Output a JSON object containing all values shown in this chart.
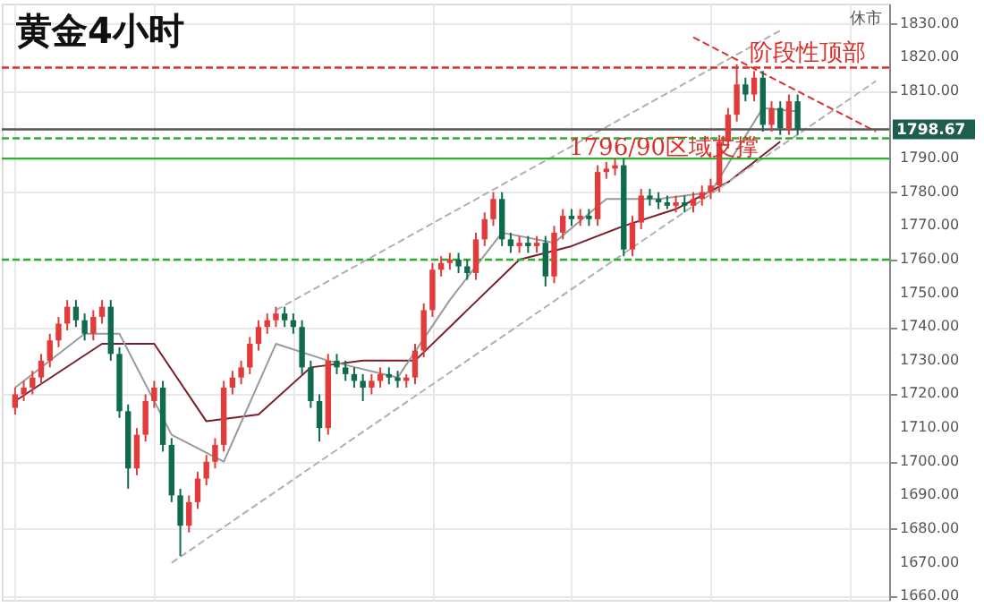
{
  "chart_data": {
    "type": "candlestick",
    "title": "黄金4小时",
    "categories": [
      null,
      null,
      null,
      null,
      null,
      null,
      null,
      null,
      null,
      null,
      null,
      null,
      null,
      null,
      null,
      null,
      null,
      null,
      null,
      null,
      null,
      null,
      null,
      null,
      null,
      null,
      null,
      null,
      null,
      null,
      null,
      null,
      null,
      null,
      null,
      null,
      null,
      null,
      null,
      null,
      null,
      null,
      null,
      null,
      null,
      null,
      null,
      null,
      null,
      null,
      null,
      null,
      null,
      null,
      null,
      null,
      null,
      null,
      null,
      null,
      null,
      null,
      null,
      null,
      null,
      null,
      null,
      null,
      null,
      null,
      null,
      null,
      null,
      null,
      null,
      null,
      null,
      null,
      null,
      null,
      null,
      null,
      null,
      null,
      null,
      null,
      null,
      null,
      null,
      null,
      null,
      null,
      null,
      null,
      null,
      null,
      null,
      null,
      null,
      null
    ],
    "ohlc": [
      [
        1716,
        1722,
        1714,
        1720
      ],
      [
        1720,
        1724,
        1718,
        1722
      ],
      [
        1722,
        1727,
        1720,
        1725
      ],
      [
        1725,
        1732,
        1723,
        1730
      ],
      [
        1730,
        1738,
        1728,
        1736
      ],
      [
        1736,
        1743,
        1734,
        1741
      ],
      [
        1741,
        1748,
        1739,
        1746
      ],
      [
        1746,
        1748,
        1740,
        1742
      ],
      [
        1742,
        1744,
        1736,
        1738
      ],
      [
        1738,
        1745,
        1736,
        1743
      ],
      [
        1743,
        1748,
        1741,
        1746
      ],
      [
        1746,
        1748,
        1730,
        1732
      ],
      [
        1732,
        1734,
        1713,
        1715
      ],
      [
        1715,
        1717,
        1692,
        1698
      ],
      [
        1698,
        1710,
        1696,
        1708
      ],
      [
        1708,
        1720,
        1706,
        1718
      ],
      [
        1718,
        1724,
        1716,
        1722
      ],
      [
        1722,
        1724,
        1703,
        1705
      ],
      [
        1705,
        1707,
        1688,
        1690
      ],
      [
        1690,
        1692,
        1672,
        1681
      ],
      [
        1681,
        1690,
        1679,
        1688
      ],
      [
        1688,
        1697,
        1686,
        1695
      ],
      [
        1695,
        1702,
        1693,
        1700
      ],
      [
        1700,
        1707,
        1698,
        1705
      ],
      [
        1705,
        1724,
        1703,
        1722
      ],
      [
        1722,
        1727,
        1720,
        1725
      ],
      [
        1725,
        1730,
        1723,
        1728
      ],
      [
        1728,
        1737,
        1726,
        1735
      ],
      [
        1735,
        1742,
        1733,
        1740
      ],
      [
        1740,
        1744,
        1738,
        1742
      ],
      [
        1742,
        1746,
        1740,
        1744
      ],
      [
        1744,
        1746,
        1740,
        1742
      ],
      [
        1742,
        1744,
        1738,
        1740
      ],
      [
        1740,
        1742,
        1726,
        1728
      ],
      [
        1728,
        1730,
        1716,
        1718
      ],
      [
        1718,
        1720,
        1706,
        1710
      ],
      [
        1710,
        1732,
        1708,
        1730
      ],
      [
        1730,
        1732,
        1726,
        1728
      ],
      [
        1728,
        1730,
        1724,
        1726
      ],
      [
        1726,
        1728,
        1722,
        1724
      ],
      [
        1724,
        1726,
        1718,
        1722
      ],
      [
        1722,
        1726,
        1720,
        1724
      ],
      [
        1724,
        1728,
        1722,
        1726
      ],
      [
        1726,
        1728,
        1723,
        1725
      ],
      [
        1725,
        1727,
        1722,
        1724
      ],
      [
        1724,
        1726,
        1722,
        1725
      ],
      [
        1725,
        1735,
        1723,
        1733
      ],
      [
        1733,
        1747,
        1731,
        1745
      ],
      [
        1745,
        1759,
        1743,
        1757
      ],
      [
        1757,
        1761,
        1755,
        1759
      ],
      [
        1759,
        1762,
        1757,
        1760
      ],
      [
        1760,
        1762,
        1756,
        1758
      ],
      [
        1758,
        1760,
        1754,
        1756
      ],
      [
        1756,
        1768,
        1754,
        1766
      ],
      [
        1766,
        1774,
        1764,
        1772
      ],
      [
        1772,
        1780,
        1770,
        1778
      ],
      [
        1778,
        1780,
        1764,
        1766
      ],
      [
        1766,
        1768,
        1762,
        1764
      ],
      [
        1764,
        1767,
        1762,
        1765
      ],
      [
        1765,
        1767,
        1762,
        1764
      ],
      [
        1764,
        1767,
        1762,
        1765
      ],
      [
        1765,
        1767,
        1752,
        1755
      ],
      [
        1755,
        1770,
        1753,
        1768
      ],
      [
        1768,
        1775,
        1766,
        1773
      ],
      [
        1773,
        1775,
        1770,
        1772
      ],
      [
        1772,
        1775,
        1770,
        1773
      ],
      [
        1773,
        1775,
        1770,
        1772
      ],
      [
        1772,
        1788,
        1770,
        1786
      ],
      [
        1786,
        1789,
        1784,
        1787
      ],
      [
        1787,
        1790,
        1785,
        1788
      ],
      [
        1788,
        1790,
        1761,
        1763
      ],
      [
        1763,
        1773,
        1761,
        1771
      ],
      [
        1771,
        1781,
        1769,
        1779
      ],
      [
        1779,
        1781,
        1776,
        1778
      ],
      [
        1778,
        1780,
        1775,
        1777
      ],
      [
        1777,
        1779,
        1775,
        1776
      ],
      [
        1776,
        1779,
        1774,
        1777
      ],
      [
        1777,
        1779,
        1774,
        1776
      ],
      [
        1776,
        1780,
        1774,
        1778
      ],
      [
        1778,
        1782,
        1776,
        1780
      ],
      [
        1780,
        1784,
        1778,
        1782
      ],
      [
        1782,
        1797,
        1780,
        1795
      ],
      [
        1795,
        1805,
        1793,
        1803
      ],
      [
        1803,
        1818,
        1801,
        1812
      ],
      [
        1812,
        1814,
        1807,
        1809
      ],
      [
        1809,
        1816,
        1807,
        1814
      ],
      [
        1814,
        1816,
        1798,
        1800
      ],
      [
        1800,
        1807,
        1798,
        1805
      ],
      [
        1805,
        1807,
        1797,
        1799
      ],
      [
        1799,
        1809,
        1797,
        1807
      ],
      [
        1807,
        1809,
        1797,
        1798.67
      ],
      null,
      null,
      null,
      null,
      null,
      null,
      null,
      null,
      null
    ],
    "colors": [
      "#e23b3b",
      "#e23b3b",
      "#e23b3b",
      "#e23b3b",
      "#e23b3b",
      "#e23b3b",
      "#e23b3b",
      "#0f6b4c",
      "#0f6b4c",
      "#e23b3b",
      "#e23b3b",
      "#0f6b4c",
      "#0f6b4c",
      "#0f6b4c",
      "#e23b3b",
      "#e23b3b",
      "#e23b3b",
      "#0f6b4c",
      "#0f6b4c",
      "#0f6b4c",
      "#e23b3b",
      "#e23b3b",
      "#e23b3b",
      "#e23b3b",
      "#e23b3b",
      "#e23b3b",
      "#e23b3b",
      "#e23b3b",
      "#e23b3b",
      "#e23b3b",
      "#e23b3b",
      "#0f6b4c",
      "#0f6b4c",
      "#0f6b4c",
      "#0f6b4c",
      "#0f6b4c",
      "#e23b3b",
      "#0f6b4c",
      "#0f6b4c",
      "#0f6b4c",
      "#0f6b4c",
      "#e23b3b",
      "#e23b3b",
      "#0f6b4c",
      "#0f6b4c",
      "#e23b3b",
      "#e23b3b",
      "#e23b3b",
      "#e23b3b",
      "#e23b3b",
      "#e23b3b",
      "#0f6b4c",
      "#0f6b4c",
      "#e23b3b",
      "#e23b3b",
      "#e23b3b",
      "#0f6b4c",
      "#0f6b4c",
      "#e23b3b",
      "#0f6b4c",
      "#e23b3b",
      "#0f6b4c",
      "#e23b3b",
      "#e23b3b",
      "#0f6b4c",
      "#e23b3b",
      "#0f6b4c",
      "#e23b3b",
      "#e23b3b",
      "#e23b3b",
      "#0f6b4c",
      "#e23b3b",
      "#e23b3b",
      "#0f6b4c",
      "#0f6b4c",
      "#0f6b4c",
      "#e23b3b",
      "#0f6b4c",
      "#e23b3b",
      "#e23b3b",
      "#e23b3b",
      "#e23b3b",
      "#e23b3b",
      "#e23b3b",
      "#0f6b4c",
      "#e23b3b",
      "#0f6b4c",
      "#e23b3b",
      "#0f6b4c",
      "#e23b3b",
      "#0f6b4c",
      null,
      null,
      null,
      null,
      null,
      null,
      null,
      null,
      null
    ],
    "series": [
      {
        "type": "line",
        "color": "#7a1f2a",
        "values": [
          1718,
          null,
          null,
          null,
          null,
          null,
          null,
          null,
          null,
          null,
          1735,
          null,
          null,
          null,
          null,
          null,
          1735,
          null,
          null,
          null,
          null,
          null,
          1712,
          null,
          null,
          null,
          null,
          null,
          1714,
          null,
          null,
          null,
          null,
          null,
          1728,
          null,
          null,
          null,
          null,
          null,
          1730,
          null,
          null,
          null,
          null,
          null,
          1730,
          null,
          null,
          null,
          null,
          null,
          1745,
          null,
          null,
          null,
          null,
          null,
          1760,
          null,
          null,
          null,
          null,
          null,
          1764,
          null,
          null,
          null,
          null,
          null,
          1770,
          null,
          null,
          null,
          null,
          null,
          1775,
          null,
          null,
          null,
          null,
          null,
          1783,
          null,
          null,
          null,
          null,
          null,
          1795,
          null,
          null,
          null,
          null,
          null,
          null,
          null,
          null,
          null,
          null,
          null
        ]
      },
      {
        "type": "line",
        "color": "#9a9a9a",
        "values": [
          1722,
          null,
          null,
          null,
          null,
          null,
          null,
          null,
          1738,
          null,
          null,
          null,
          1738,
          null,
          null,
          null,
          null,
          null,
          1708,
          null,
          null,
          null,
          null,
          null,
          1700,
          null,
          null,
          null,
          null,
          null,
          1735,
          null,
          null,
          null,
          null,
          null,
          1730,
          null,
          null,
          null,
          null,
          null,
          null,
          null,
          1725,
          null,
          null,
          null,
          null,
          null,
          1748,
          null,
          null,
          null,
          null,
          null,
          1768,
          null,
          null,
          null,
          null,
          null,
          1765,
          null,
          null,
          null,
          null,
          null,
          1778,
          null,
          null,
          null,
          null,
          null,
          1778,
          null,
          null,
          null,
          null,
          null,
          1780,
          null,
          null,
          null,
          null,
          null,
          1805,
          null,
          null,
          null,
          1804,
          null,
          null,
          null,
          null,
          null,
          null,
          null,
          null,
          null
        ]
      },
      {
        "type": "line",
        "color": "#b0b0b0",
        "line_style": "dashed",
        "values": [
          null,
          null,
          null,
          null,
          null,
          null,
          null,
          null,
          null,
          null,
          null,
          null,
          null,
          null,
          null,
          null,
          null,
          null,
          null,
          null,
          null,
          null,
          null,
          null,
          null,
          null,
          null,
          null,
          null,
          null,
          1745,
          null,
          null,
          null,
          null,
          null,
          null,
          null,
          null,
          null,
          null,
          null,
          null,
          null,
          null,
          null,
          null,
          null,
          null,
          null,
          null,
          null,
          null,
          null,
          null,
          null,
          null,
          null,
          null,
          null,
          null,
          null,
          null,
          null,
          null,
          null,
          null,
          null,
          null,
          null,
          null,
          null,
          null,
          null,
          null,
          null,
          null,
          null,
          null,
          null,
          null,
          null,
          null,
          null,
          null,
          null,
          null,
          null,
          1828,
          null,
          null,
          null,
          null,
          null,
          null,
          null,
          null,
          null,
          null,
          null
        ]
      },
      {
        "type": "line",
        "color": "#b0b0b0",
        "line_style": "dashed",
        "values": [
          null,
          null,
          null,
          null,
          null,
          null,
          null,
          null,
          null,
          null,
          null,
          null,
          null,
          null,
          null,
          null,
          null,
          null,
          1670,
          null,
          null,
          null,
          null,
          null,
          null,
          null,
          null,
          null,
          null,
          null,
          null,
          null,
          null,
          null,
          null,
          null,
          null,
          null,
          null,
          null,
          null,
          null,
          null,
          null,
          null,
          null,
          null,
          null,
          null,
          null,
          null,
          null,
          null,
          null,
          null,
          null,
          null,
          null,
          null,
          null,
          null,
          null,
          null,
          null,
          null,
          null,
          null,
          null,
          null,
          null,
          null,
          null,
          null,
          null,
          null,
          null,
          null,
          null,
          null,
          null,
          null,
          null,
          null,
          null,
          null,
          null,
          null,
          null,
          null,
          null,
          null,
          null,
          null,
          null,
          null,
          null,
          null,
          null,
          null,
          1813
        ]
      },
      {
        "type": "line",
        "color": "#d9302c",
        "line_style": "dashed",
        "values": [
          null,
          null,
          null,
          null,
          null,
          null,
          null,
          null,
          null,
          null,
          null,
          null,
          null,
          null,
          null,
          null,
          null,
          null,
          null,
          null,
          null,
          null,
          null,
          null,
          null,
          null,
          null,
          null,
          null,
          null,
          null,
          null,
          null,
          null,
          null,
          null,
          null,
          null,
          null,
          null,
          null,
          null,
          null,
          null,
          null,
          null,
          null,
          null,
          null,
          null,
          null,
          null,
          null,
          null,
          null,
          null,
          null,
          null,
          null,
          null,
          null,
          null,
          null,
          null,
          null,
          null,
          null,
          null,
          null,
          null,
          null,
          null,
          null,
          null,
          null,
          null,
          null,
          null,
          1826,
          null,
          null,
          null,
          null,
          null,
          null,
          null,
          null,
          null,
          null,
          null,
          null,
          null,
          null,
          null,
          null,
          null,
          null,
          null,
          null,
          1798
        ]
      }
    ],
    "ylim": [
      1659,
      1836
    ],
    "yticks": [
      {
        "value": 1660,
        "label": "1660.00"
      },
      {
        "value": 1670,
        "label": "1670.00"
      },
      {
        "value": 1680,
        "label": "1680.00"
      },
      {
        "value": 1690,
        "label": "1690.00"
      },
      {
        "value": 1700,
        "label": "1700.00"
      },
      {
        "value": 1710,
        "label": "1710.00"
      },
      {
        "value": 1720,
        "label": "1720.00"
      },
      {
        "value": 1730,
        "label": "1730.00"
      },
      {
        "value": 1740,
        "label": "1740.00"
      },
      {
        "value": 1750,
        "label": "1750.00"
      },
      {
        "value": 1760,
        "label": "1760.00"
      },
      {
        "value": 1770,
        "label": "1770.00"
      },
      {
        "value": 1780,
        "label": "1780.00"
      },
      {
        "value": 1790,
        "label": "1790.00"
      },
      {
        "value": 1810,
        "label": "1810.00"
      },
      {
        "value": 1820,
        "label": "1820.00"
      },
      {
        "value": 1830,
        "label": "1830.00"
      }
    ],
    "ref_lines": [
      {
        "axis": "y",
        "value": 1817,
        "label": "阶段性顶部",
        "color": "#d9302c",
        "line_style": "dashed"
      },
      {
        "axis": "y",
        "value": 1798.67,
        "label": "1798.67",
        "color": "#555555",
        "line_style": "solid"
      },
      {
        "axis": "y",
        "value": 1796,
        "color": "#2fae2f",
        "line_style": "dashed"
      },
      {
        "axis": "y",
        "value": 1790,
        "label": "1796/90区域支撑",
        "color": "#2fae2f",
        "line_style": "solid"
      },
      {
        "axis": "y",
        "value": 1760,
        "color": "#2fae2f",
        "line_style": "dashed"
      }
    ],
    "annotations": [
      "休市"
    ],
    "grid": true
  }
}
